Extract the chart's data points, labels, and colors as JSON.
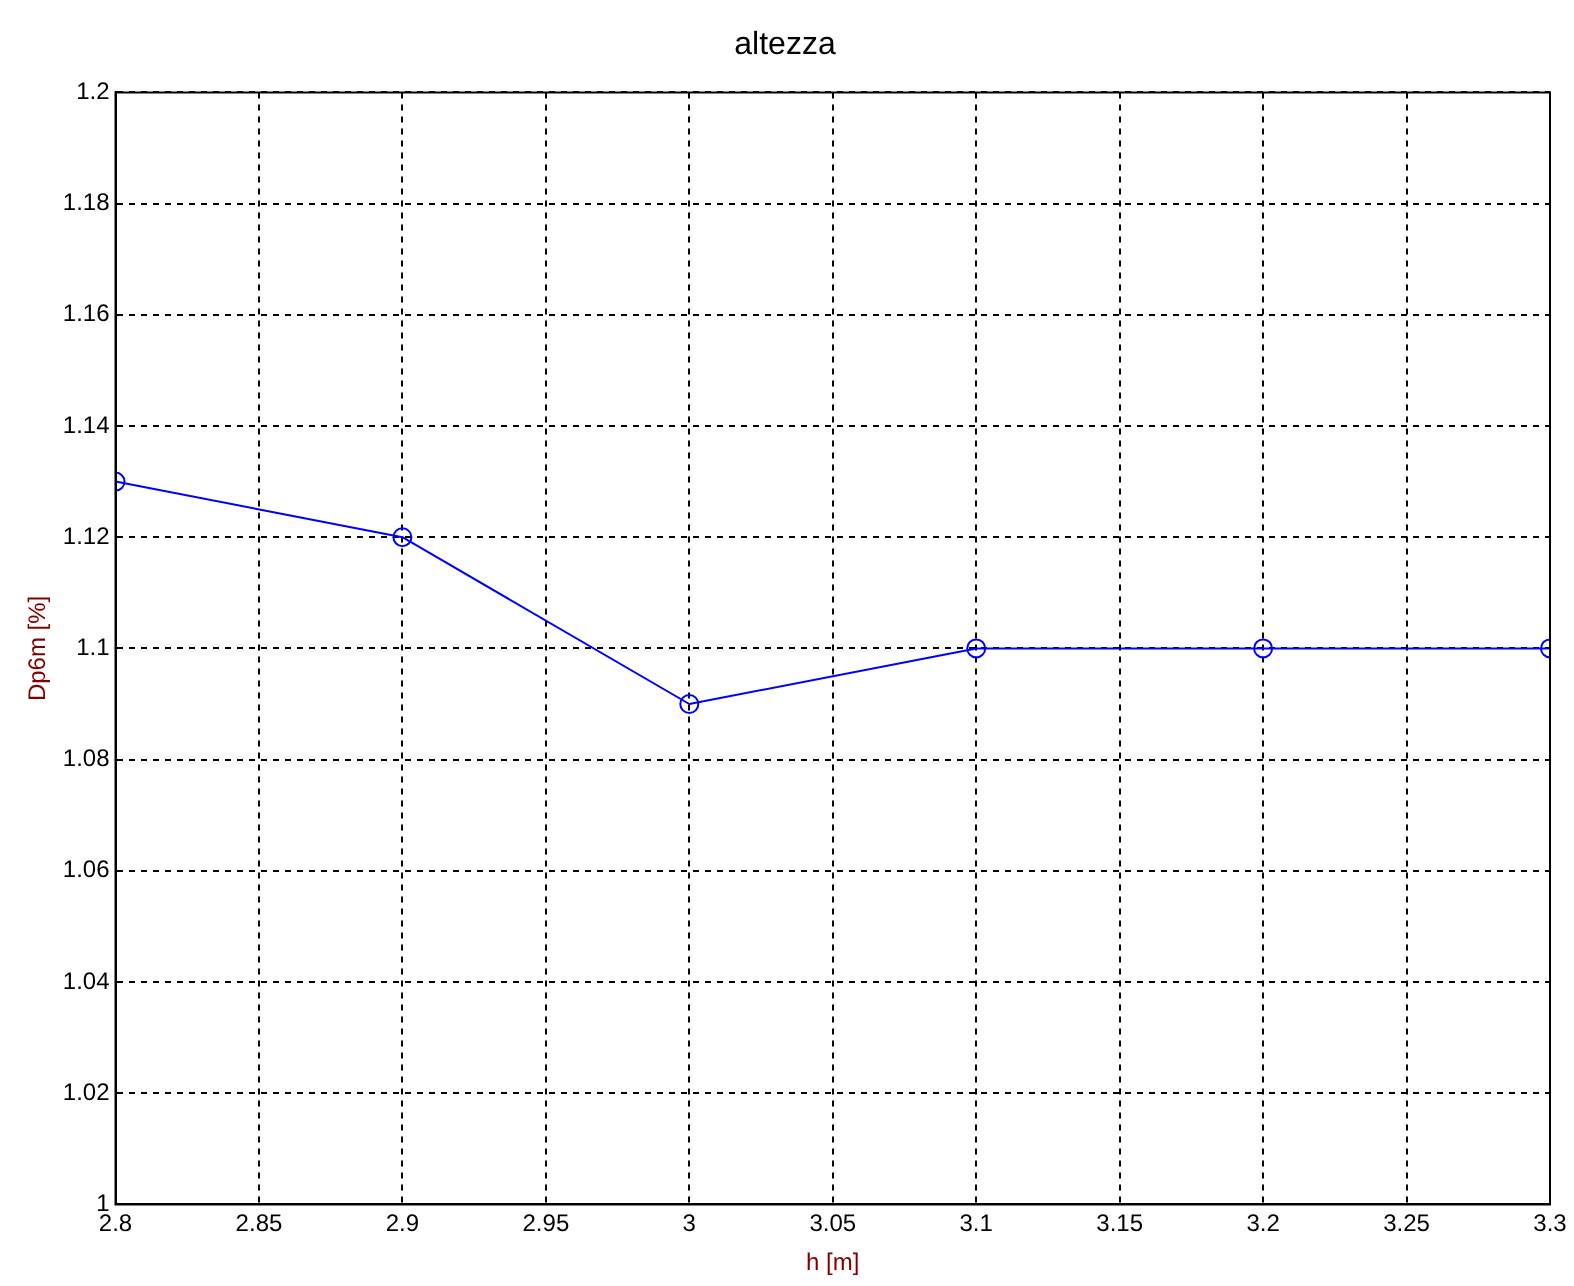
{
  "chart_data": {
    "type": "line",
    "title": "altezza",
    "xlabel": "h [m]",
    "ylabel": "Dp6m [%]",
    "x": [
      2.8,
      2.9,
      3.0,
      3.1,
      3.2,
      3.3
    ],
    "series": [
      {
        "color": "#0000ff",
        "values": [
          1.13,
          1.12,
          1.09,
          1.1,
          1.1,
          1.1
        ]
      }
    ],
    "xlim": [
      2.8,
      3.3
    ],
    "xticks": [
      2.8,
      2.85,
      2.9,
      2.95,
      3,
      3.05,
      3.1,
      3.15,
      3.2,
      3.25,
      3.3
    ],
    "ylim": [
      1,
      1.2
    ],
    "yticks": [
      1,
      1.02,
      1.04,
      1.06,
      1.08,
      1.1,
      1.12,
      1.14,
      1.16,
      1.18,
      1.2
    ],
    "grid": true,
    "marker": "circle",
    "line_style": "solid",
    "legend": false
  }
}
